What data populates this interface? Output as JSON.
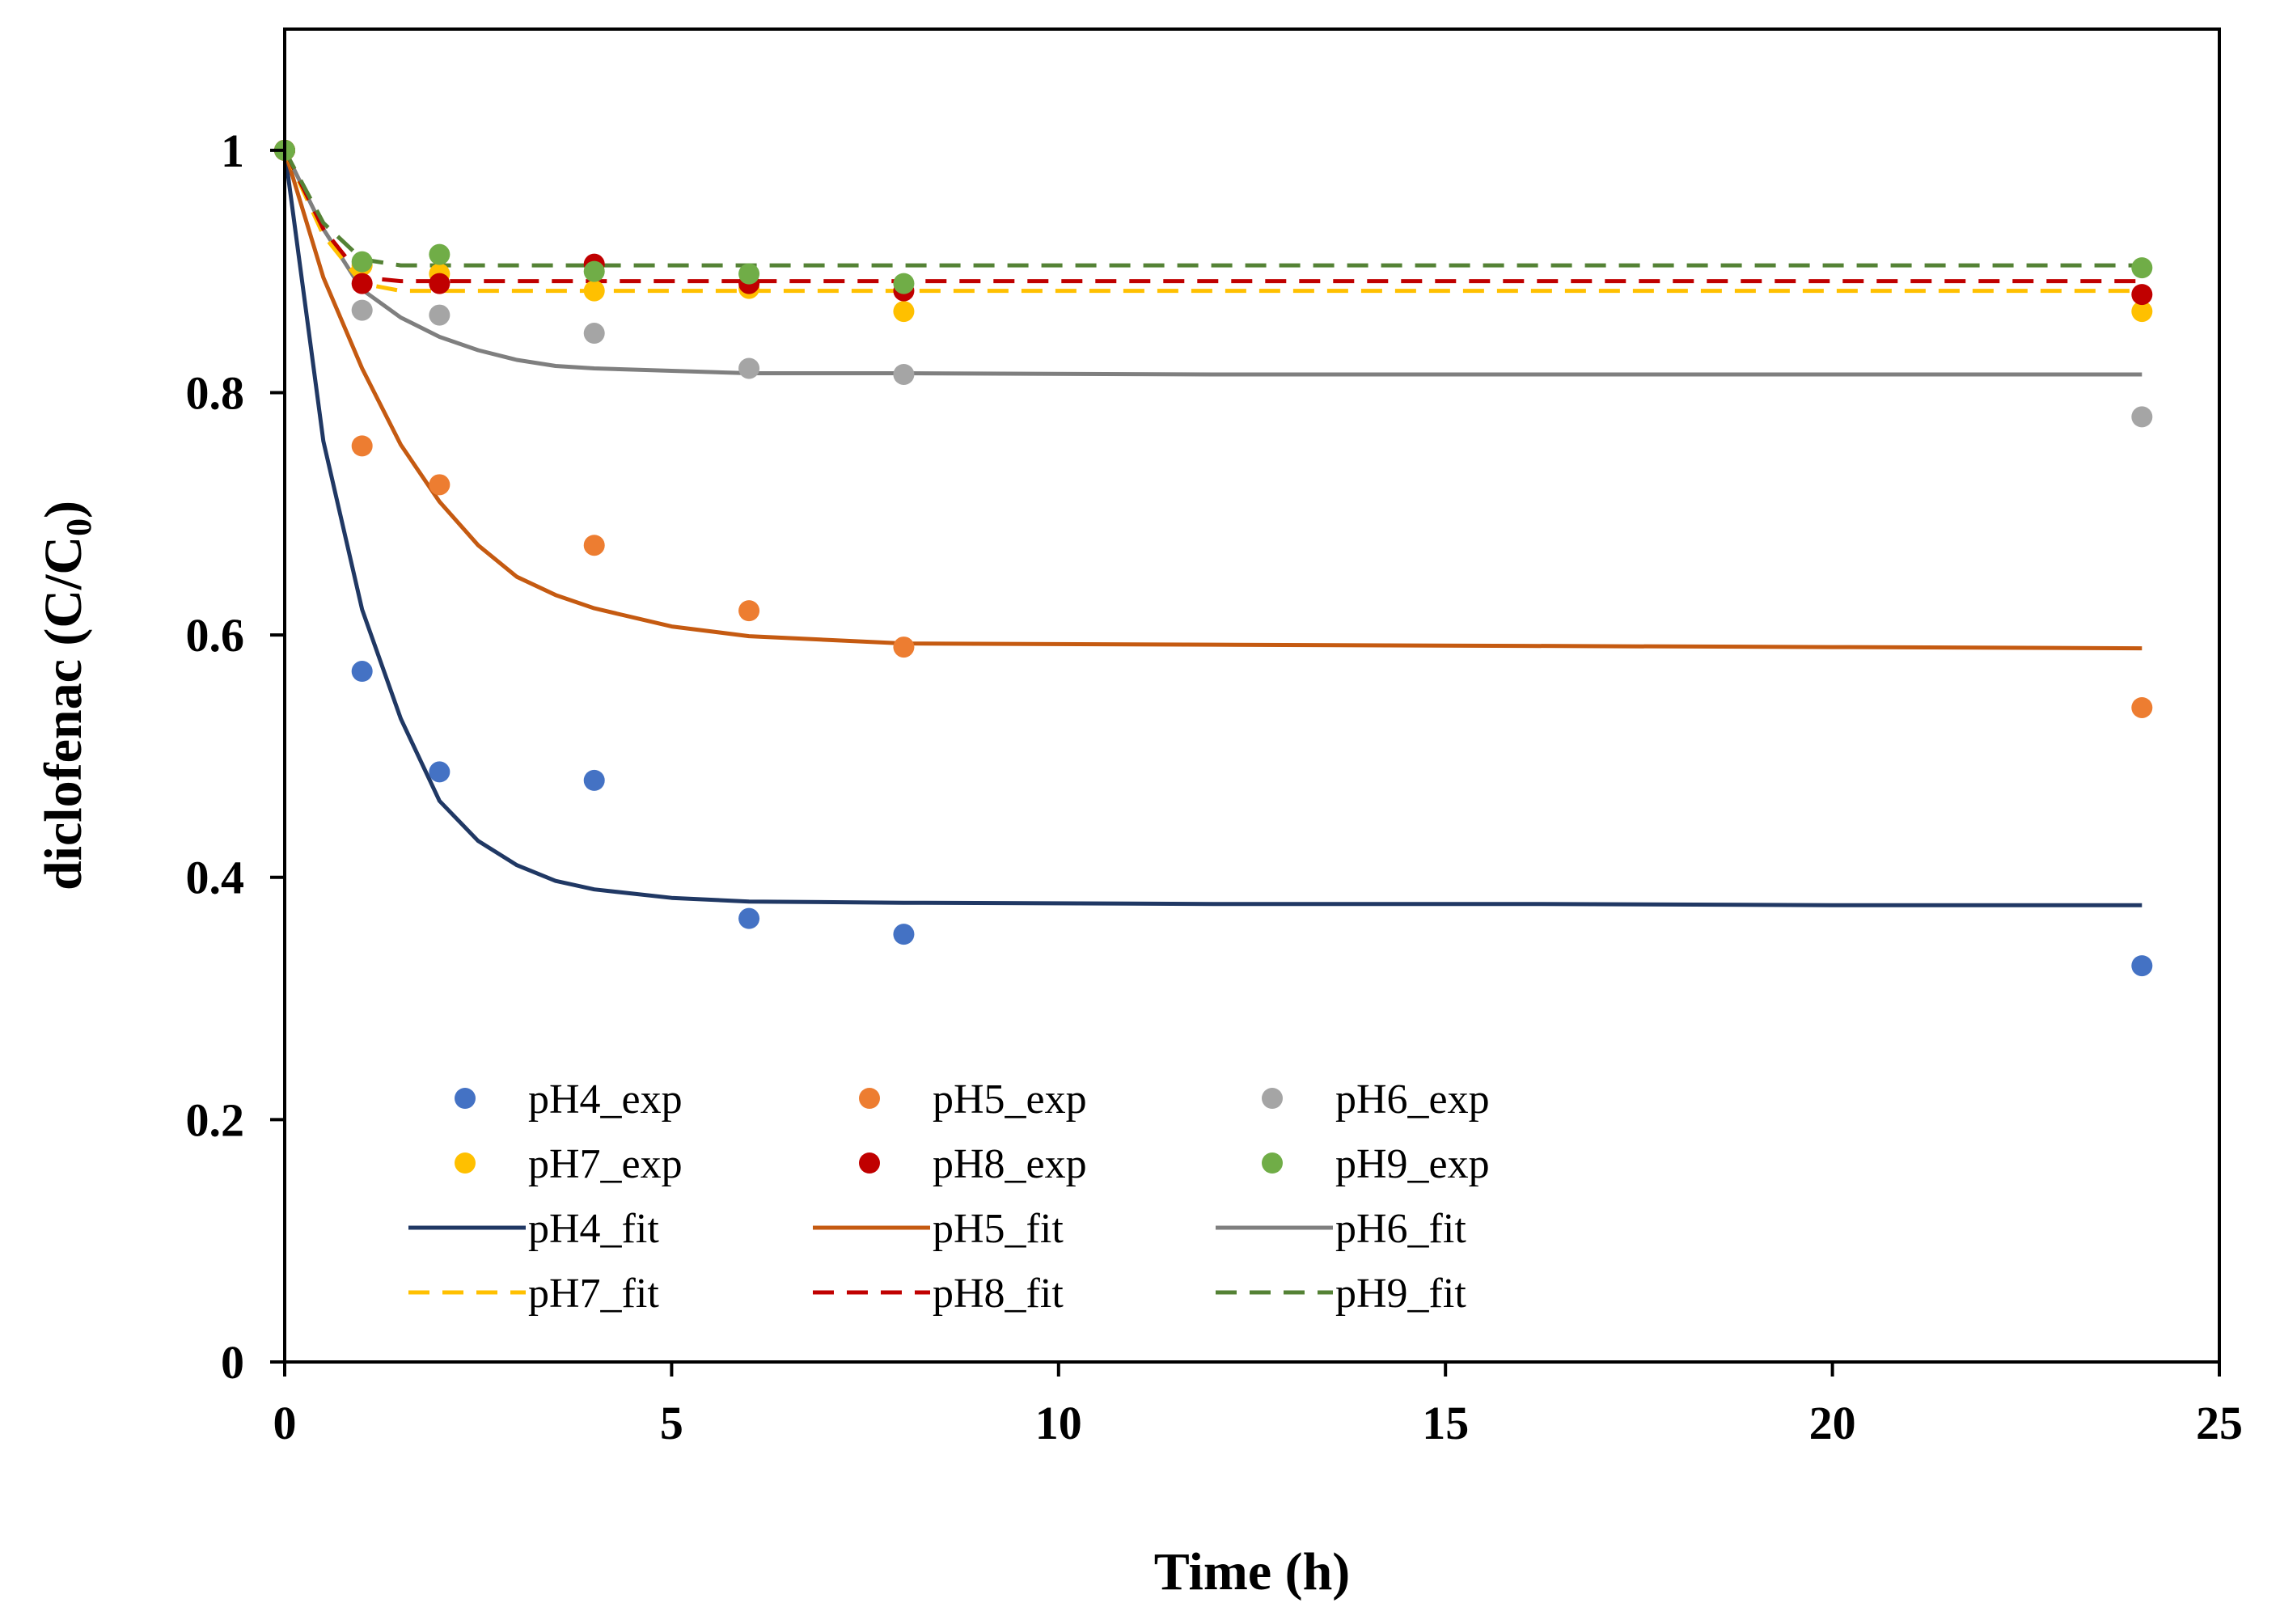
{
  "chart_data": {
    "type": "scatter",
    "title": "",
    "xlabel": "Time (h)",
    "ylabel_main": "diclofenac (C/C",
    "ylabel_sub": "0",
    "ylabel_close": ")",
    "xlim": [
      0,
      25
    ],
    "ylim": [
      0,
      1.1
    ],
    "x_ticks": [
      0,
      5,
      10,
      15,
      20,
      25
    ],
    "x_tick_labels": [
      "0",
      "5",
      "10",
      "15",
      "20",
      "25"
    ],
    "y_ticks": [
      0,
      0.2,
      0.4,
      0.6,
      0.8,
      1.0
    ],
    "y_tick_labels": [
      "0",
      "0.2",
      "0.4",
      "0.6",
      "0.8",
      "1"
    ],
    "grid": false,
    "legend_position": "lower-left (inside plot)",
    "series": [
      {
        "name": "pH4_exp",
        "kind": "points",
        "color": "#4472C4",
        "x": [
          0,
          1,
          2,
          4,
          6,
          8,
          24
        ],
        "y": [
          1.0,
          0.57,
          0.487,
          0.48,
          0.366,
          0.353,
          0.327
        ]
      },
      {
        "name": "pH5_exp",
        "kind": "points",
        "color": "#ED7D31",
        "x": [
          0,
          1,
          2,
          4,
          6,
          8,
          24
        ],
        "y": [
          1.0,
          0.756,
          0.724,
          0.674,
          0.62,
          0.59,
          0.54
        ]
      },
      {
        "name": "pH6_exp",
        "kind": "points",
        "color": "#A5A5A5",
        "x": [
          0,
          1,
          2,
          4,
          6,
          8,
          24
        ],
        "y": [
          1.0,
          0.868,
          0.864,
          0.849,
          0.82,
          0.815,
          0.78
        ]
      },
      {
        "name": "pH7_exp",
        "kind": "points",
        "color": "#FFC000",
        "x": [
          0,
          1,
          2,
          4,
          6,
          8,
          24
        ],
        "y": [
          1.0,
          0.905,
          0.898,
          0.884,
          0.886,
          0.867,
          0.867
        ]
      },
      {
        "name": "pH8_exp",
        "kind": "points",
        "color": "#C00000",
        "x": [
          0,
          1,
          2,
          4,
          6,
          8,
          24
        ],
        "y": [
          1.0,
          0.89,
          0.89,
          0.906,
          0.89,
          0.884,
          0.881
        ]
      },
      {
        "name": "pH9_exp",
        "kind": "points",
        "color": "#70AD47",
        "x": [
          0,
          1,
          2,
          4,
          6,
          8,
          24
        ],
        "y": [
          1.0,
          0.908,
          0.914,
          0.9,
          0.898,
          0.89,
          0.903
        ]
      },
      {
        "name": "pH4_fit",
        "kind": "line",
        "color": "#203864",
        "dashed": false,
        "x": [
          0,
          0.5,
          1,
          1.5,
          2,
          2.5,
          3,
          3.5,
          4,
          5,
          6,
          8,
          12,
          16,
          20,
          24
        ],
        "y": [
          1.0,
          0.76,
          0.621,
          0.531,
          0.463,
          0.43,
          0.41,
          0.397,
          0.39,
          0.383,
          0.38,
          0.379,
          0.378,
          0.378,
          0.377,
          0.377
        ]
      },
      {
        "name": "pH5_fit",
        "kind": "line",
        "color": "#C55A11",
        "dashed": false,
        "x": [
          0,
          0.5,
          1,
          1.5,
          2,
          2.5,
          3,
          3.5,
          4,
          5,
          6,
          8,
          12,
          16,
          20,
          24
        ],
        "y": [
          1.0,
          0.895,
          0.82,
          0.757,
          0.71,
          0.674,
          0.648,
          0.633,
          0.622,
          0.607,
          0.599,
          0.593,
          0.592,
          0.591,
          0.59,
          0.589
        ]
      },
      {
        "name": "pH6_fit",
        "kind": "line",
        "color": "#7F7F7F",
        "dashed": false,
        "x": [
          0,
          0.5,
          1,
          1.5,
          2,
          2.5,
          3,
          3.5,
          4,
          5,
          6,
          8,
          12,
          16,
          20,
          24
        ],
        "y": [
          1.0,
          0.935,
          0.885,
          0.862,
          0.846,
          0.835,
          0.827,
          0.822,
          0.82,
          0.818,
          0.816,
          0.816,
          0.815,
          0.815,
          0.815,
          0.815
        ]
      },
      {
        "name": "pH7_fit",
        "kind": "line",
        "color": "#FFC000",
        "dashed": true,
        "x": [
          0,
          0.5,
          1,
          1.5,
          2,
          4,
          8,
          12,
          16,
          20,
          24
        ],
        "y": [
          1.0,
          0.93,
          0.89,
          0.884,
          0.884,
          0.884,
          0.884,
          0.884,
          0.884,
          0.884,
          0.884
        ]
      },
      {
        "name": "pH8_fit",
        "kind": "line",
        "color": "#C00000",
        "dashed": true,
        "x": [
          0,
          0.5,
          1,
          1.5,
          2,
          4,
          8,
          12,
          16,
          20,
          24
        ],
        "y": [
          1.0,
          0.935,
          0.895,
          0.892,
          0.892,
          0.892,
          0.892,
          0.892,
          0.892,
          0.892,
          0.892
        ]
      },
      {
        "name": "pH9_fit",
        "kind": "line",
        "color": "#548235",
        "dashed": true,
        "x": [
          0,
          0.5,
          1,
          1.5,
          2,
          4,
          8,
          12,
          16,
          20,
          24
        ],
        "y": [
          1.0,
          0.94,
          0.91,
          0.905,
          0.905,
          0.905,
          0.905,
          0.905,
          0.905,
          0.905,
          0.905
        ]
      }
    ]
  }
}
